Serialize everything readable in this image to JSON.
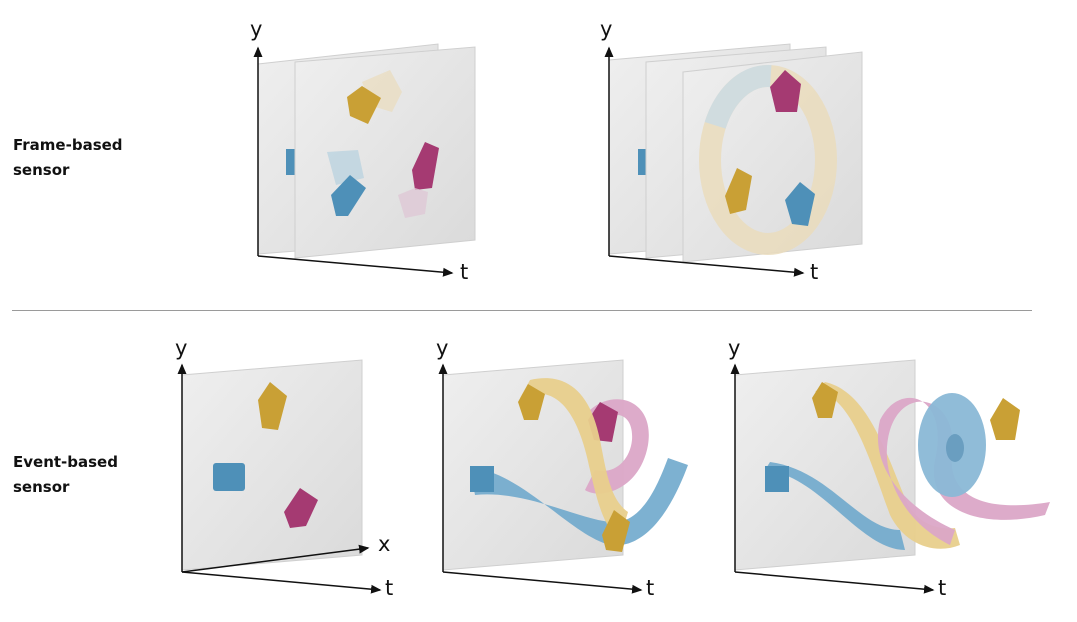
{
  "rows": {
    "frame_label": "Frame-based\nsensor",
    "event_label": "Event-based\nsensor"
  },
  "axes": {
    "y": "y",
    "t": "t",
    "x": "x"
  },
  "colors": {
    "yellow": "#c9a035",
    "blue": "#4e90b8",
    "magenta": "#a53a72",
    "pink": "#dba7c7",
    "cream": "#eadcbc",
    "plane": "#e7e7e7"
  }
}
